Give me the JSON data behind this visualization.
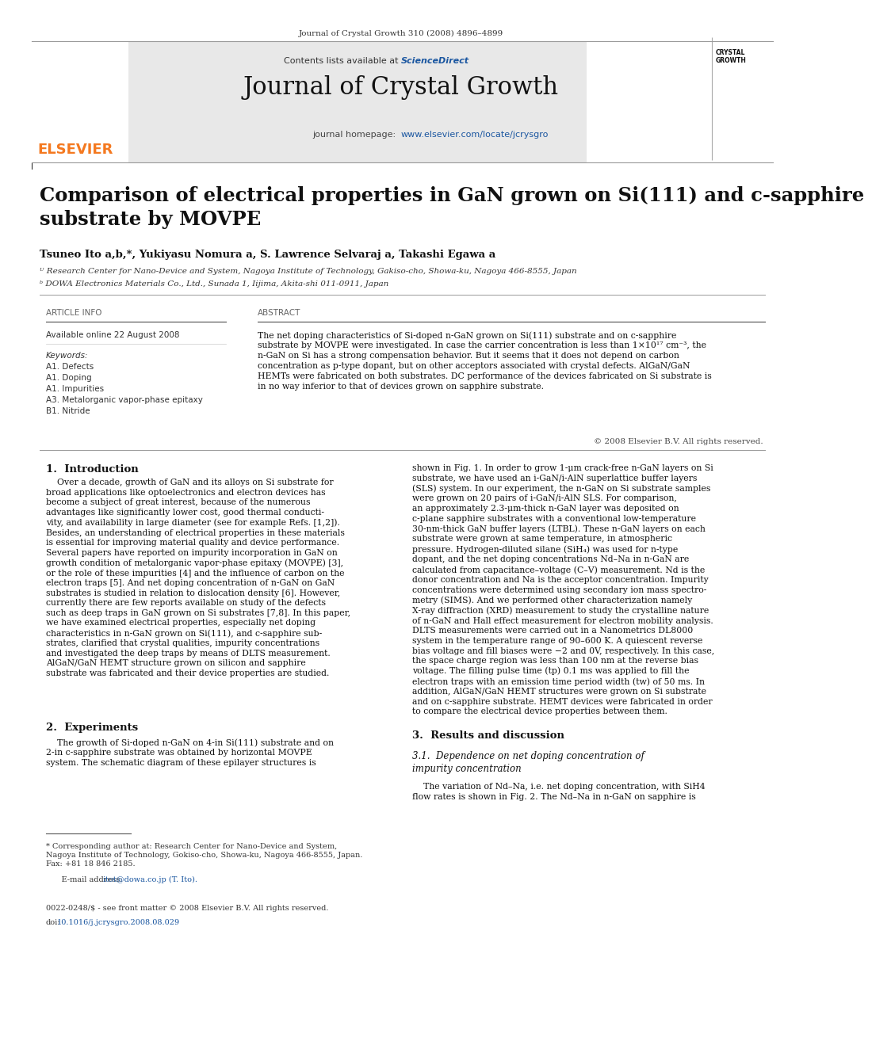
{
  "page_width": 9.92,
  "page_height": 13.23,
  "bg_color": "#ffffff",
  "header_journal_line": "Journal of Crystal Growth 310 (2008) 4896–4899",
  "header_bg": "#e8e8e8",
  "header_contents": "Contents lists available at",
  "header_sciencedirect": "ScienceDirect",
  "header_journal_title": "Journal of Crystal Growth",
  "header_homepage_label": "journal homepage:",
  "header_homepage_url": "www.elsevier.com/locate/jcrysgro",
  "elsevier_color": "#f47920",
  "link_color": "#1a56a0",
  "dark_bar_color": "#1a1a1a",
  "article_title": "Comparison of electrical properties in GaN grown on Si(111) and c-sapphire\nsubstrate by MOVPE",
  "authors": "Tsuneo Ito a,b,*, Yukiyasu Nomura a, S. Lawrence Selvaraj a, Takashi Egawa a",
  "affil_a": "ᵁ Research Center for Nano-Device and System, Nagoya Institute of Technology, Gakiso-cho, Showa-ku, Nagoya 466-8555, Japan",
  "affil_b": "ᵇ DOWA Electronics Materials Co., Ltd., Sunada 1, Iijima, Akita-shi 011-0911, Japan",
  "article_info_header": "ARTICLE INFO",
  "abstract_header": "ABSTRACT",
  "available_online": "Available online 22 August 2008",
  "keywords_label": "Keywords:",
  "keywords": [
    "A1. Defects",
    "A1. Doping",
    "A1. Impurities",
    "A3. Metalorganic vapor-phase epitaxy",
    "B1. Nitride"
  ],
  "abstract_text": "The net doping characteristics of Si-doped n-GaN grown on Si(111) substrate and on c-sapphire\nsubstrate by MOVPE were investigated. In case the carrier concentration is less than 1×10¹⁷ cm⁻³, the\nn-GaN on Si has a strong compensation behavior. But it seems that it does not depend on carbon\nconcentration as p-type dopant, but on other acceptors associated with crystal defects. AlGaN/GaN\nHEMTs were fabricated on both substrates. DC performance of the devices fabricated on Si substrate is\nin no way inferior to that of devices grown on sapphire substrate.",
  "copyright_line": "© 2008 Elsevier B.V. All rights reserved.",
  "section1_title": "1.  Introduction",
  "intro_text1": "    Over a decade, growth of GaN and its alloys on Si substrate for\nbroad applications like optoelectronics and electron devices has\nbecome a subject of great interest, because of the numerous\nadvantages like significantly lower cost, good thermal conducti-\nvity, and availability in large diameter (see for example Refs. [1,2]).\nBesides, an understanding of electrical properties in these materials\nis essential for improving material quality and device performance.\nSeveral papers have reported on impurity incorporation in GaN on\ngrowth condition of metalorganic vapor-phase epitaxy (MOVPE) [3],\nor the role of these impurities [4] and the influence of carbon on the\nelectron traps [5]. And net doping concentration of n-GaN on GaN\nsubstrates is studied in relation to dislocation density [6]. However,\ncurrently there are few reports available on study of the defects\nsuch as deep traps in GaN grown on Si substrates [7,8]. In this paper,\nwe have examined electrical properties, especially net doping\ncharacteristics in n-GaN grown on Si(111), and c-sapphire sub-\nstrates, clarified that crystal qualities, impurity concentrations\nand investigated the deep traps by means of DLTS measurement.\nAlGaN/GaN HEMT structure grown on silicon and sapphire\nsubstrate was fabricated and their device properties are studied.",
  "section2_title": "2.  Experiments",
  "exp_text": "    The growth of Si-doped n-GaN on 4-in Si(111) substrate and on\n2-in c-sapphire substrate was obtained by horizontal MOVPE\nsystem. The schematic diagram of these epilayer structures is",
  "right_col_text1": "shown in Fig. 1. In order to grow 1-μm crack-free n-GaN layers on Si\nsubstrate, we have used an i-GaN/i-AlN superlattice buffer layers\n(SLS) system. In our experiment, the n-GaN on Si substrate samples\nwere grown on 20 pairs of i-GaN/i-AlN SLS. For comparison,\nan approximately 2.3-μm-thick n-GaN layer was deposited on\nc-plane sapphire substrates with a conventional low-temperature\n30-nm-thick GaN buffer layers (LTBL). These n-GaN layers on each\nsubstrate were grown at same temperature, in atmospheric\npressure. Hydrogen-diluted silane (SiH₄) was used for n-type\ndopant, and the net doping concentrations Nd–Na in n-GaN are\ncalculated from capacitance–voltage (C–V) measurement. Nd is the\ndonor concentration and Na is the acceptor concentration. Impurity\nconcentrations were determined using secondary ion mass spectro-\nmetry (SIMS). And we performed other characterization namely\nX-ray diffraction (XRD) measurement to study the crystalline nature\nof n-GaN and Hall effect measurement for electron mobility analysis.\nDLTS measurements were carried out in a Nanometrics DL8000\nsystem in the temperature range of 90–600 K. A quiescent reverse\nbias voltage and fill biases were −2 and 0V, respectively. In this case,\nthe space charge region was less than 100 nm at the reverse bias\nvoltage. The filling pulse time (tp) 0.1 ms was applied to fill the\nelectron traps with an emission time period width (tw) of 50 ms. In\naddition, AlGaN/GaN HEMT structures were grown on Si substrate\nand on c-sapphire substrate. HEMT devices were fabricated in order\nto compare the electrical device properties between them.",
  "section3_title": "3.  Results and discussion",
  "section31_title": "3.1.  Dependence on net doping concentration of\nimpurity concentration",
  "results_text": "    The variation of Nd–Na, i.e. net doping concentration, with SiH4\nflow rates is shown in Fig. 2. The Nd–Na in n-GaN on sapphire is",
  "footnote_star": "* Corresponding author at: Research Center for Nano-Device and System,\nNagoya Institute of Technology, Gokiso-cho, Showa-ku, Nagoya 466-8555, Japan.\nFax: +81 18 846 2185.",
  "footnote_email_label": "    E-mail address: ",
  "footnote_email_link": "itot@dowa.co.jp (T. Ito).",
  "issn_line": "0022-0248/$ - see front matter © 2008 Elsevier B.V. All rights reserved.",
  "doi_label": "doi:",
  "doi_link": "10.1016/j.jcrysgro.2008.08.029"
}
